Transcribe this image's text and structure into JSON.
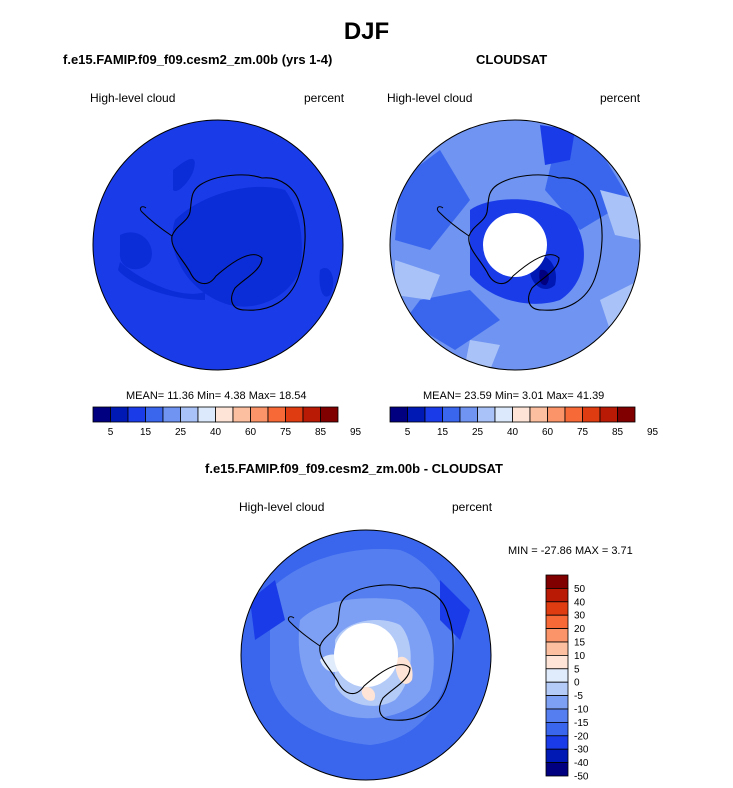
{
  "title": "DJF",
  "panels": {
    "model": {
      "title": "f.e15.FAMIP.f09_f09.cesm2_zm.00b (yrs 1-4)",
      "left_label": "High-level cloud",
      "right_label": "percent",
      "stats": "MEAN=  11.36  Min=   4.38  Max=  18.54"
    },
    "obs": {
      "title": "CLOUDSAT",
      "left_label": "High-level cloud",
      "right_label": "percent",
      "stats": "MEAN=  23.59  Min=   3.01  Max=  41.39"
    },
    "diff": {
      "title": "f.e15.FAMIP.f09_f09.cesm2_zm.00b - CLOUDSAT",
      "left_label": "High-level cloud",
      "right_label": "percent",
      "stats": "MIN = -27.86 MAX =   3.71"
    }
  },
  "colors": {
    "abs_scale": [
      "#000080",
      "#0019b4",
      "#1a3ce8",
      "#3a66ee",
      "#6f94f2",
      "#a9c2f7",
      "#dce8fb",
      "#fde4d6",
      "#fcc0a0",
      "#fb9468",
      "#f76936",
      "#e03c12",
      "#b81a06",
      "#800000"
    ],
    "diff_scale": [
      "#000080",
      "#0019b4",
      "#1a3ce8",
      "#3a66ee",
      "#557ff0",
      "#7ea0f4",
      "#b4cbf8",
      "#e0ebfb",
      "#fde4d6",
      "#fcc0a0",
      "#fb9468",
      "#f76936",
      "#e03c12",
      "#b81a06",
      "#800000"
    ]
  },
  "chart_data": [
    {
      "type": "heatmap",
      "title": "f.e15.FAMIP.f09_f09.cesm2_zm.00b (yrs 1-4)",
      "projection": "south polar stereographic",
      "variable": "High-level cloud",
      "units": "percent",
      "mean": 11.36,
      "min": 4.38,
      "max": 18.54,
      "colorbar": {
        "levels": [
          5,
          10,
          15,
          20,
          25,
          30,
          40,
          50,
          60,
          70,
          75,
          80,
          85,
          90,
          95
        ],
        "tick_labels": [
          "5",
          "15",
          "25",
          "40",
          "60",
          "75",
          "85",
          "95"
        ]
      }
    },
    {
      "type": "heatmap",
      "title": "CLOUDSAT",
      "projection": "south polar stereographic",
      "variable": "High-level cloud",
      "units": "percent",
      "mean": 23.59,
      "min": 3.01,
      "max": 41.39,
      "colorbar": {
        "levels": [
          5,
          10,
          15,
          20,
          25,
          30,
          40,
          50,
          60,
          70,
          75,
          80,
          85,
          90,
          95
        ],
        "tick_labels": [
          "5",
          "15",
          "25",
          "40",
          "60",
          "75",
          "85",
          "95"
        ]
      }
    },
    {
      "type": "heatmap",
      "title": "f.e15.FAMIP.f09_f09.cesm2_zm.00b - CLOUDSAT",
      "projection": "south polar stereographic",
      "variable": "High-level cloud",
      "units": "percent",
      "min": -27.86,
      "max": 3.71,
      "colorbar": {
        "orientation": "vertical",
        "tick_labels": [
          "50",
          "40",
          "30",
          "20",
          "15",
          "10",
          "5",
          "0",
          "-5",
          "-10",
          "-15",
          "-20",
          "-30",
          "-40",
          "-50"
        ]
      }
    }
  ]
}
